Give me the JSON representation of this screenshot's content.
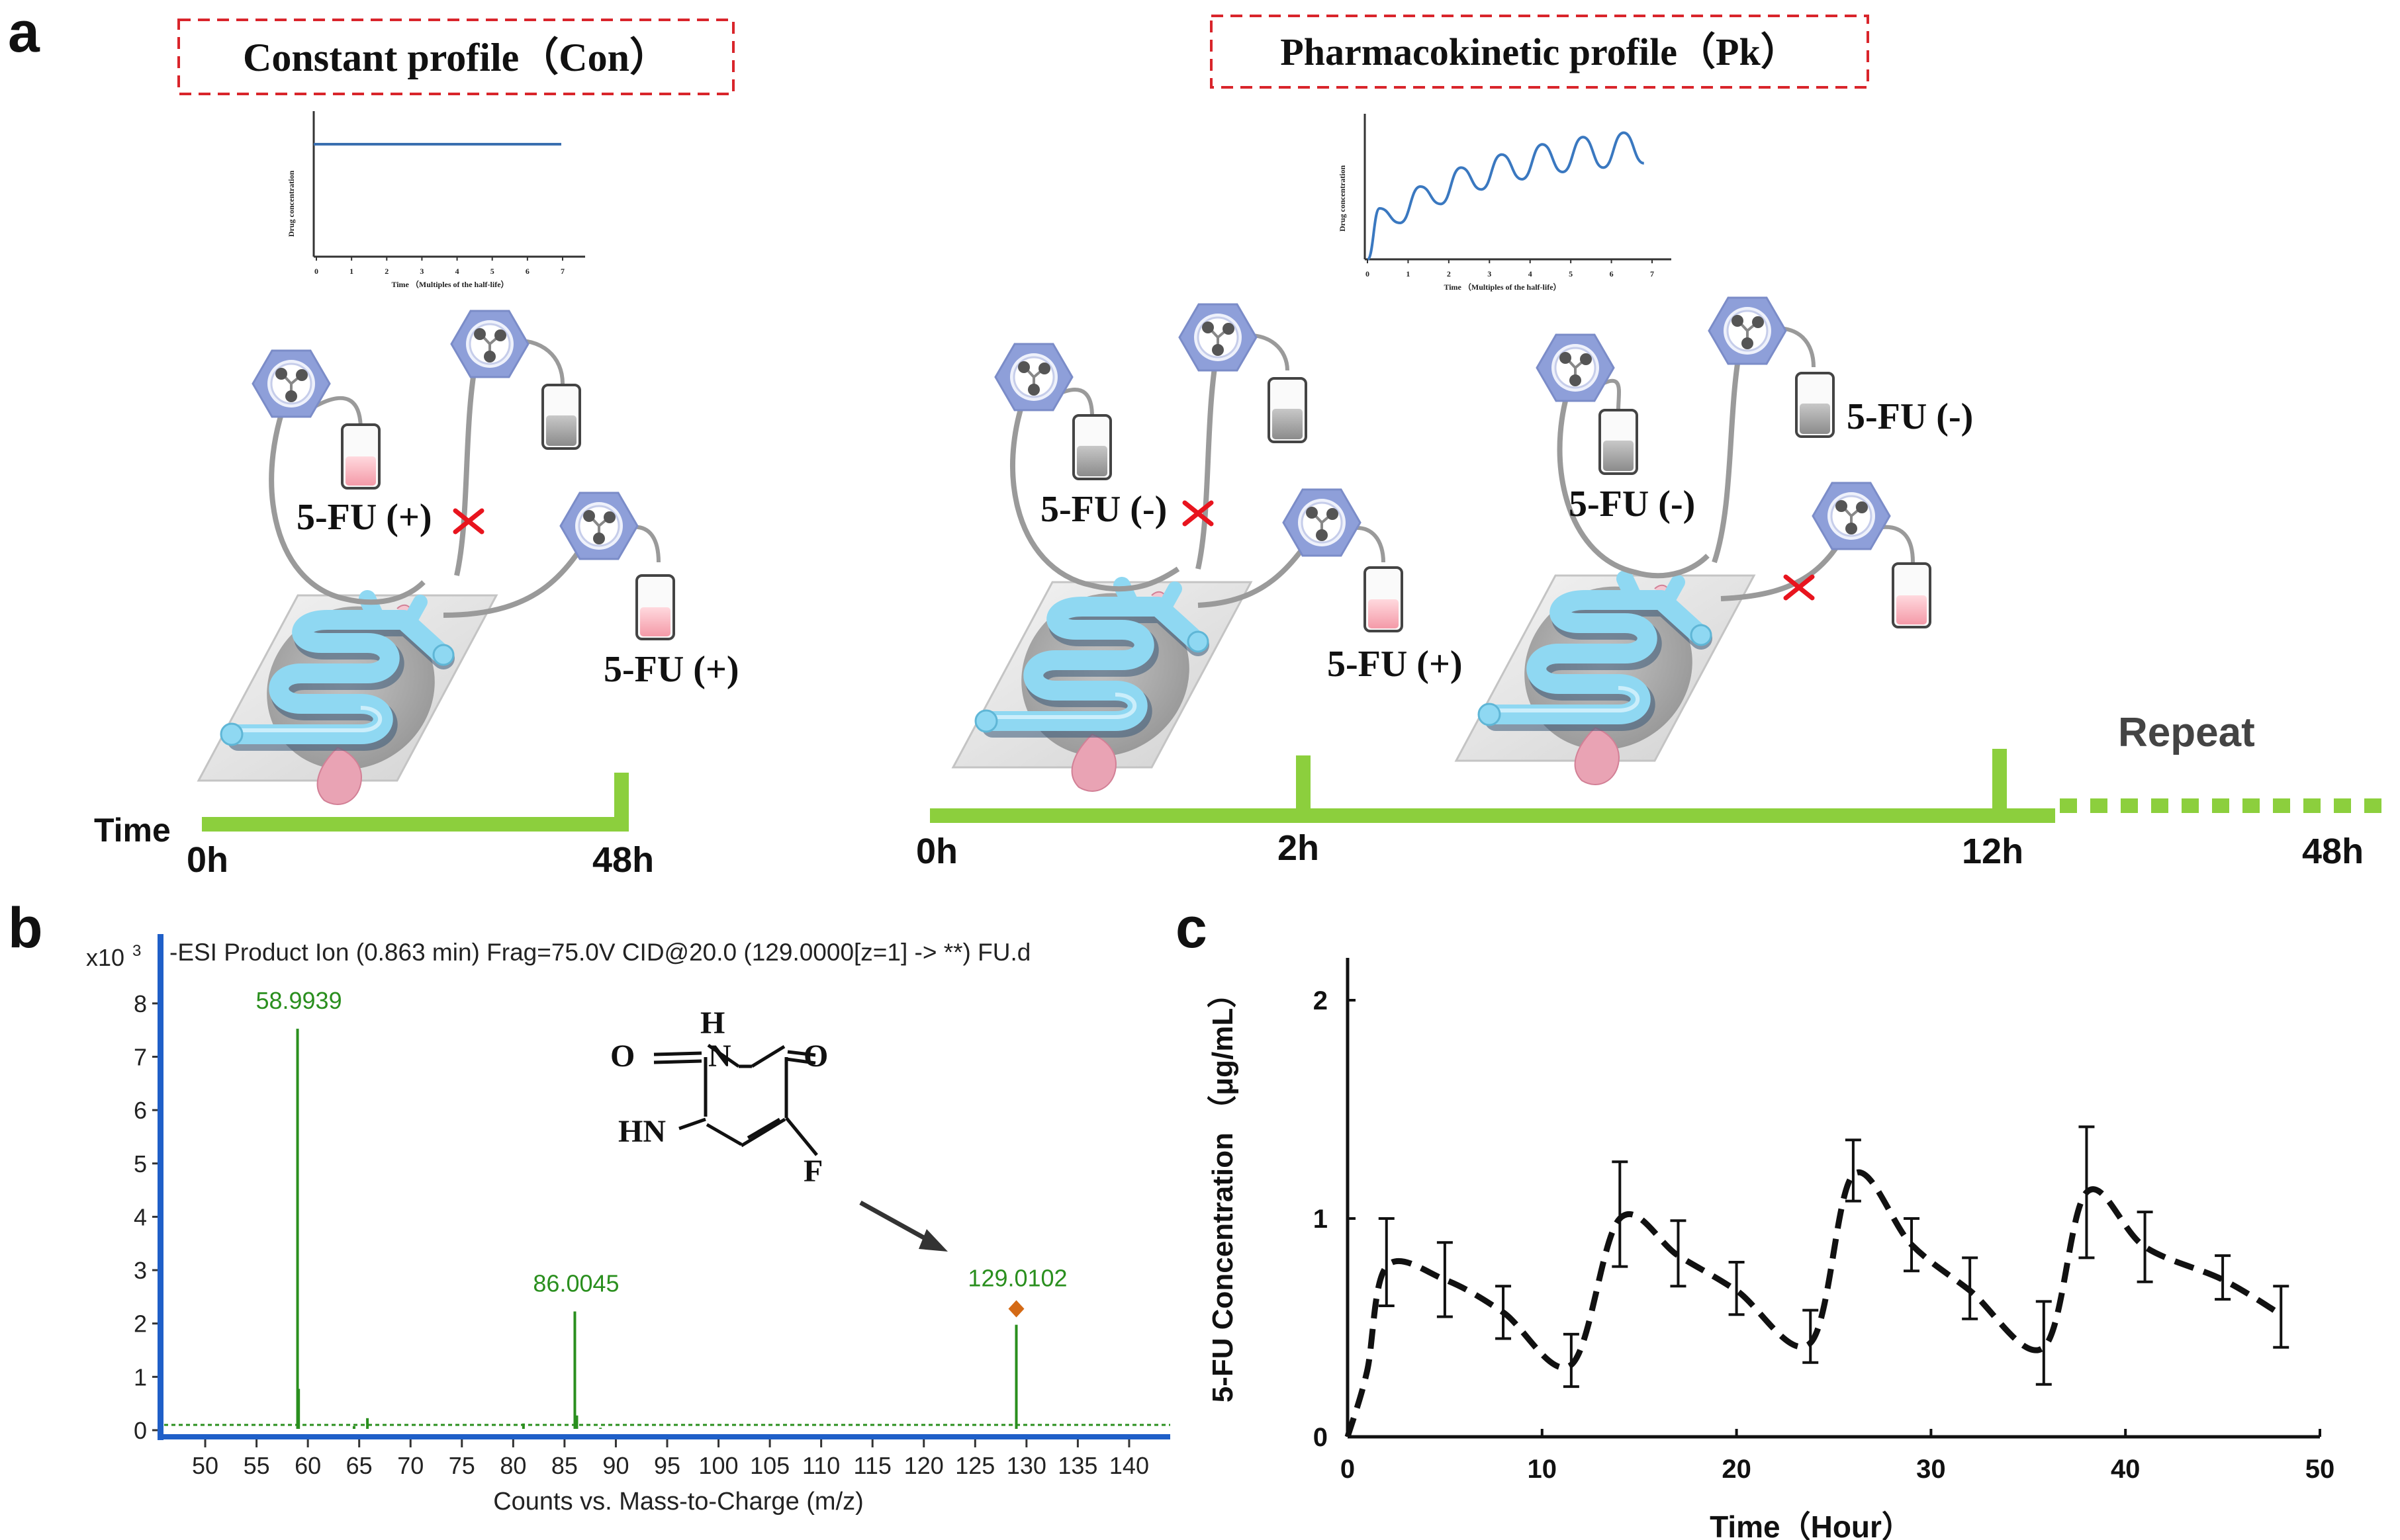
{
  "panel_a": {
    "letter": "a",
    "con_title": "Constant profile（Con）",
    "pk_title": "Pharmacokinetic profile（Pk）",
    "mini_y_label": "Drug   concentration",
    "mini_x_label": "Time （Multiples of the half-life）",
    "mini_ticks": [
      "0",
      "1",
      "2",
      "3",
      "4",
      "5",
      "6",
      "7"
    ],
    "labels": {
      "con_top": "5-FU (+)",
      "con_right": "5-FU (+)",
      "pk1_top": "5-FU (-)",
      "pk1_right": "5-FU (+)",
      "pk2_top": "5-FU (-)",
      "pk2_right": "5-FU (-)"
    },
    "time_label": "Time",
    "con_times": [
      "0h",
      "48h"
    ],
    "pk_times": [
      "0h",
      "2h",
      "12h",
      "48h"
    ],
    "repeat": "Repeat"
  },
  "panel_b": {
    "letter": "b",
    "y_scale": "x10",
    "y_scale_exp": "3",
    "header": "-ESI Product Ion (0.863 min) Frag=75.0V CID@20.0 (129.0000[z=1] -> **) FU.d",
    "x_label": "Counts vs. Mass-to-Charge (m/z)",
    "molecule": {
      "H": "H",
      "O1": "O",
      "N1": "N",
      "O2": "O",
      "HN": "HN",
      "F": "F"
    }
  },
  "panel_c": {
    "letter": "c"
  },
  "colors": {
    "green_timeline": "#8ccf3d",
    "ms_green": "#2a8f1e",
    "hex_pump": "#8e9fd9",
    "chip_channel": "#8fd8f2",
    "red_cross": "#e8141e",
    "dash_border": "#d9252b"
  },
  "chart_data": [
    {
      "type": "line",
      "title": "",
      "xlabel": "Time （Multiples of the half-life）",
      "ylabel": "Drug concentration",
      "x": [
        0,
        7
      ],
      "series": [
        {
          "name": "Constant profile (Con)",
          "values": [
            0.85,
            0.85
          ]
        }
      ],
      "xlim": [
        0,
        7
      ],
      "ylim": [
        0,
        1
      ]
    },
    {
      "type": "line",
      "title": "",
      "xlabel": "Time （Multiples of the half-life）",
      "ylabel": "Drug concentration",
      "series": [
        {
          "name": "Pharmacokinetic profile (Pk)",
          "description_points": [
            [
              0,
              0
            ],
            [
              0.3,
              0.35
            ],
            [
              0.8,
              0.25
            ],
            [
              1.3,
              0.5
            ],
            [
              1.8,
              0.38
            ],
            [
              2.3,
              0.63
            ],
            [
              2.8,
              0.48
            ],
            [
              3.3,
              0.72
            ],
            [
              3.8,
              0.55
            ],
            [
              4.3,
              0.79
            ],
            [
              4.8,
              0.6
            ],
            [
              5.3,
              0.84
            ],
            [
              5.8,
              0.63
            ],
            [
              6.3,
              0.87
            ],
            [
              6.8,
              0.66
            ]
          ]
        }
      ],
      "xlim": [
        0,
        7
      ],
      "ylim": [
        0,
        1
      ]
    },
    {
      "type": "bar",
      "title": "-ESI Product Ion (0.863 min) Frag=75.0V CID@20.0 (129.0000[z=1] -> **) FU.d",
      "xlabel": "Counts vs. Mass-to-Charge (m/z)",
      "ylabel": "x10 3",
      "xlim": [
        46,
        144
      ],
      "ylim": [
        -0.2,
        9.3
      ],
      "x_ticks": [
        50,
        55,
        60,
        65,
        70,
        75,
        80,
        85,
        90,
        95,
        100,
        105,
        110,
        115,
        120,
        125,
        130,
        135,
        140
      ],
      "y_ticks": [
        0,
        1,
        2,
        3,
        4,
        5,
        6,
        7,
        8
      ],
      "peaks": [
        {
          "mz": 58.9939,
          "intensity": 7.6,
          "label": "58.9939"
        },
        {
          "mz": 59.1,
          "intensity": 0.85,
          "label": ""
        },
        {
          "mz": 65.8,
          "intensity": 0.3,
          "label": ""
        },
        {
          "mz": 64.5,
          "intensity": 0.15,
          "label": ""
        },
        {
          "mz": 81.0,
          "intensity": 0.2,
          "label": ""
        },
        {
          "mz": 86.0045,
          "intensity": 2.3,
          "label": "86.0045"
        },
        {
          "mz": 86.2,
          "intensity": 0.35,
          "label": ""
        },
        {
          "mz": 88.5,
          "intensity": 0.12,
          "label": ""
        },
        {
          "mz": 129.0102,
          "intensity": 2.05,
          "label": "129.0102"
        }
      ],
      "precursor": {
        "mz": 129.0102,
        "intensity": 2.35
      }
    },
    {
      "type": "line",
      "title": "",
      "xlabel": "Time（Hour）",
      "ylabel": "5-FU Concentration （μg/mL）",
      "xlim": [
        0,
        50
      ],
      "ylim": [
        0,
        2.2
      ],
      "x_ticks": [
        0,
        10,
        20,
        30,
        40,
        50
      ],
      "y_ticks": [
        0,
        1,
        2
      ],
      "series": [
        {
          "name": "5-FU",
          "x": [
            0,
            1,
            2,
            5,
            8,
            11.5,
            14,
            17,
            20,
            23.8,
            26,
            29,
            32,
            35.8,
            38,
            41,
            45,
            48
          ],
          "values": [
            0,
            0.3,
            0.78,
            0.72,
            0.57,
            0.33,
            1.0,
            0.83,
            0.67,
            0.43,
            1.2,
            0.88,
            0.67,
            0.41,
            1.12,
            0.87,
            0.72,
            0.56
          ],
          "error_x": [
            2,
            5,
            8,
            11.5,
            14,
            17,
            20,
            23.8,
            26,
            29,
            32,
            35.8,
            38,
            41,
            45,
            48
          ],
          "error_y": [
            0.8,
            0.72,
            0.57,
            0.35,
            1.02,
            0.84,
            0.68,
            0.46,
            1.22,
            0.88,
            0.68,
            0.43,
            1.12,
            0.87,
            0.73,
            0.55
          ],
          "error_half": [
            0.2,
            0.17,
            0.12,
            0.12,
            0.24,
            0.15,
            0.12,
            0.12,
            0.14,
            0.12,
            0.14,
            0.19,
            0.3,
            0.16,
            0.1,
            0.14
          ]
        }
      ]
    }
  ]
}
